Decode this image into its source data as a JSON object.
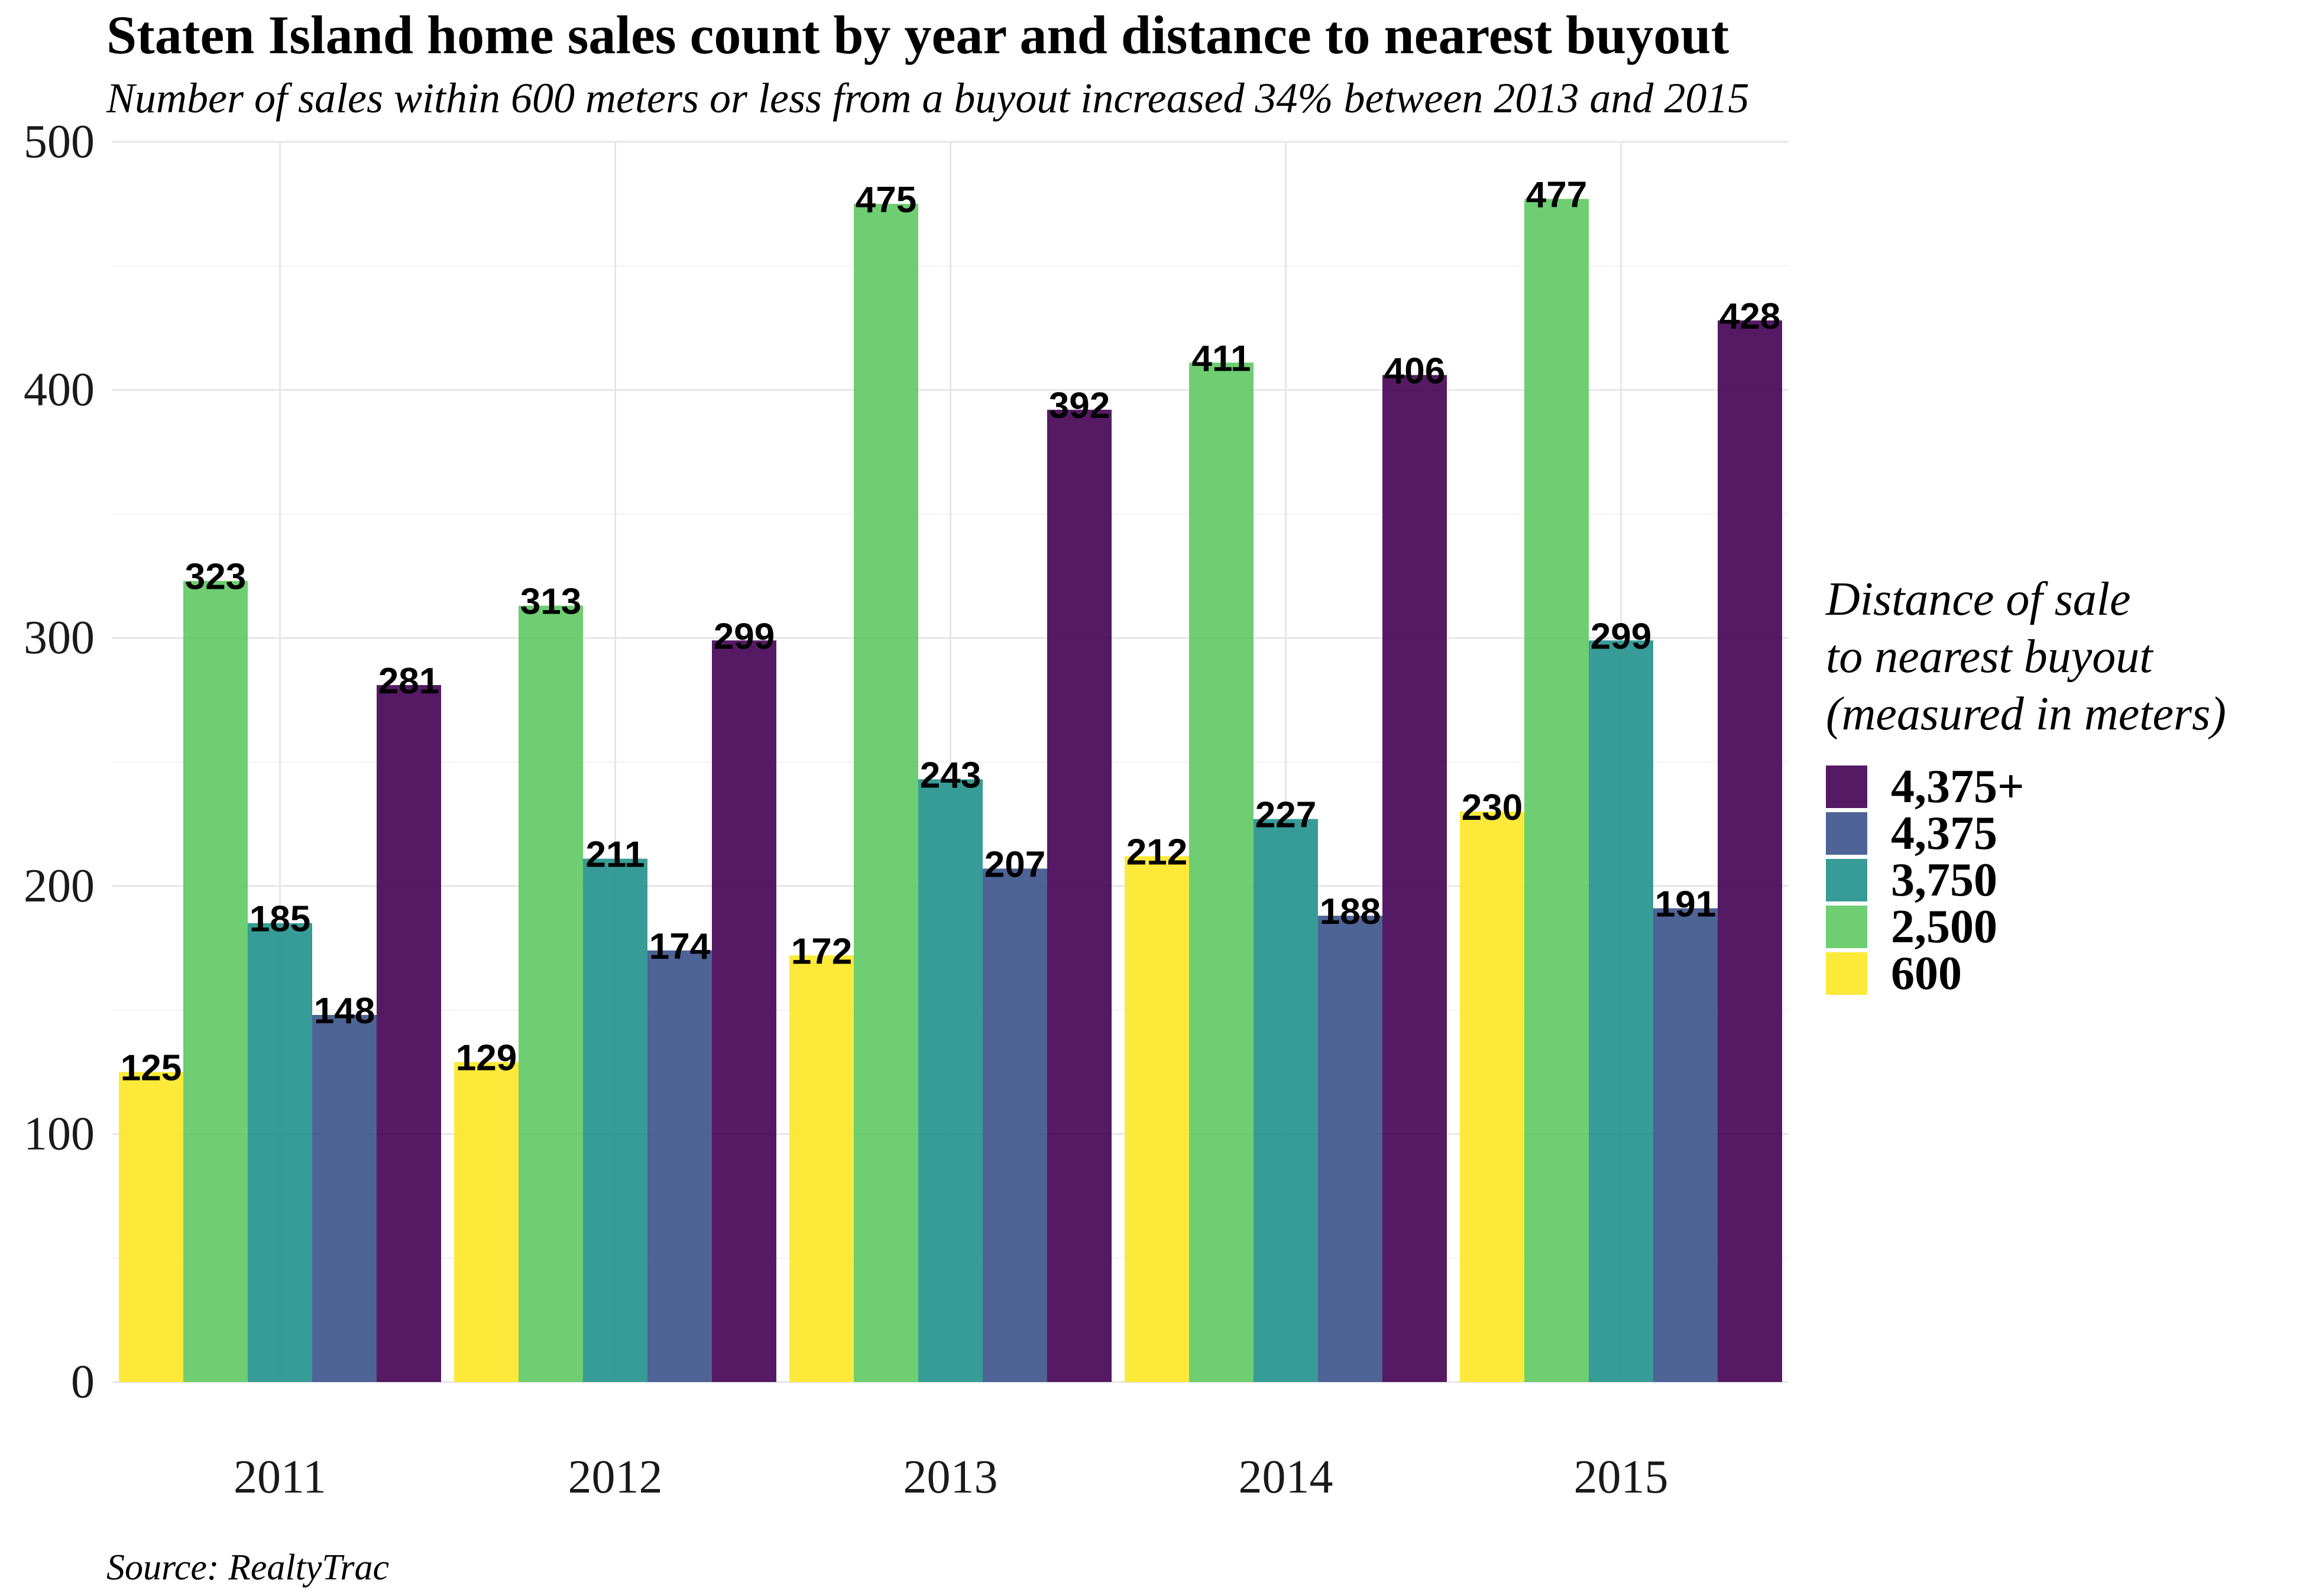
{
  "chart_data": {
    "type": "bar",
    "title": "Staten Island home sales count by year and distance to nearest buyout",
    "subtitle": "Number of sales within 600 meters or less from a buyout increased 34% between 2013 and 2015",
    "caption": "Source: RealtyTrac",
    "xlabel": "",
    "ylabel": "",
    "ylim": [
      0,
      500
    ],
    "yticks": [
      0,
      100,
      200,
      300,
      400,
      500
    ],
    "categories": [
      "2011",
      "2012",
      "2013",
      "2014",
      "2015"
    ],
    "series": [
      {
        "name": "600",
        "color": "#FDE725",
        "values": [
          125,
          129,
          172,
          212,
          230
        ]
      },
      {
        "name": "2,500",
        "color": "#5EC962",
        "values": [
          323,
          313,
          475,
          411,
          477
        ]
      },
      {
        "name": "3,750",
        "color": "#21918C",
        "values": [
          185,
          211,
          243,
          227,
          299
        ]
      },
      {
        "name": "4,375",
        "color": "#3B528B",
        "values": [
          148,
          174,
          207,
          188,
          191
        ]
      },
      {
        "name": "4,375+",
        "color": "#440154",
        "values": [
          281,
          299,
          392,
          406,
          428
        ]
      }
    ],
    "legend": {
      "title_lines": [
        "Distance of sale",
        "to nearest buyout",
        "(measured in meters)"
      ],
      "placement": "right",
      "order": [
        "4,375+",
        "4,375",
        "3,750",
        "2,500",
        "600"
      ]
    },
    "grid": true,
    "bar_opacity": 0.9
  }
}
